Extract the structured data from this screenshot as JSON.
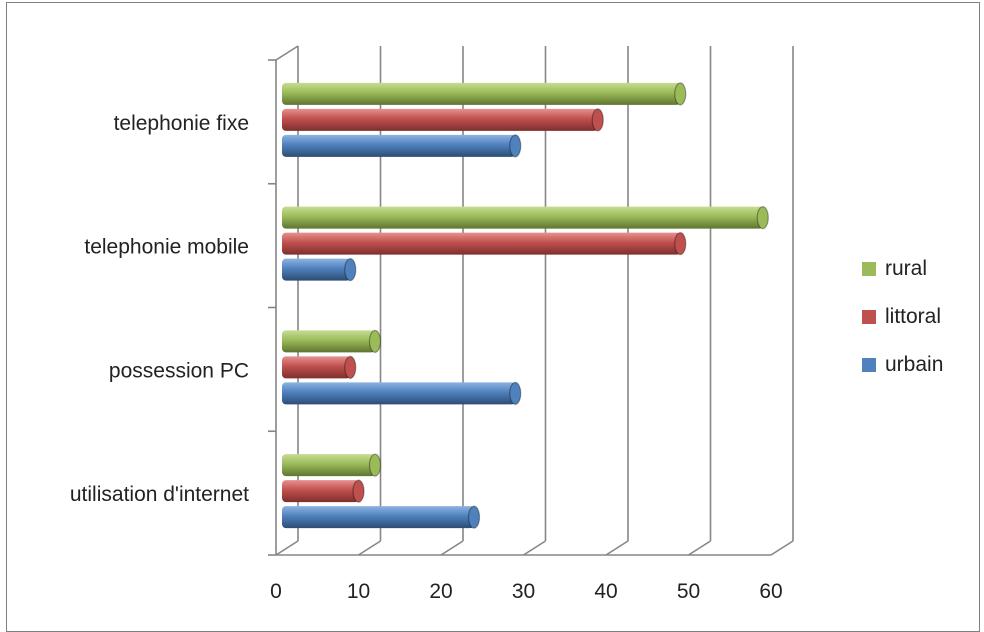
{
  "chart_data": {
    "type": "bar",
    "orientation": "horizontal",
    "three_d": true,
    "categories": [
      "utilisation d'internet",
      "possession PC",
      "telephonie mobile",
      "telephonie fixe"
    ],
    "series": [
      {
        "name": "urbain",
        "values": [
          24,
          29,
          9,
          29
        ],
        "color": "#4f81bd"
      },
      {
        "name": "littoral",
        "values": [
          10,
          9,
          49,
          39
        ],
        "color": "#c0504d"
      },
      {
        "name": "rural",
        "values": [
          12,
          12,
          59,
          49
        ],
        "color": "#9bbb59"
      }
    ],
    "title": "",
    "xlabel": "",
    "ylabel": "",
    "xlim": [
      0,
      60
    ],
    "xticks": [
      0,
      10,
      20,
      30,
      40,
      50,
      60
    ],
    "grid": true,
    "legend_position": "right"
  }
}
